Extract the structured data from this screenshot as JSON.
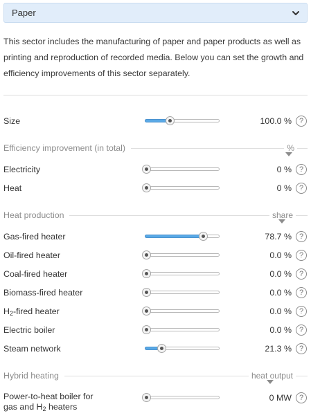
{
  "sector_select": {
    "selected": "Paper",
    "icon": "chevron-down-icon"
  },
  "description": "This sector includes the manufacturing of paper and paper products as well as printing and reproduction of recorded media. Below you can set the growth and efficiency improvements of this sector separately.",
  "size": {
    "label": "Size",
    "value": "100.0 %",
    "level": 0.33
  },
  "efficiency": {
    "title": "Efficiency improvement (in total)",
    "unit": "%",
    "rows": [
      {
        "label": "Electricity",
        "value": "0 %",
        "level": 0.0
      },
      {
        "label": "Heat",
        "value": "0 %",
        "level": 0.0
      }
    ]
  },
  "heat_production": {
    "title": "Heat production",
    "unit": "share",
    "rows": [
      {
        "label": "Gas-fired heater",
        "value": "78.7 %",
        "level": 0.787
      },
      {
        "label": "Oil-fired heater",
        "value": "0.0 %",
        "level": 0.0
      },
      {
        "label": "Coal-fired heater",
        "value": "0.0 %",
        "level": 0.0
      },
      {
        "label": "Biomass-fired heater",
        "value": "0.0 %",
        "level": 0.0
      },
      {
        "label_main": "H",
        "label_sub": "2",
        "label_rest": "-fired heater",
        "value": "0.0 %",
        "level": 0.0
      },
      {
        "label": "Electric boiler",
        "value": "0.0 %",
        "level": 0.0
      },
      {
        "label": "Steam network",
        "value": "21.3 %",
        "level": 0.213
      }
    ]
  },
  "hybrid_heating": {
    "title": "Hybrid heating",
    "unit": "heat output",
    "rows": [
      {
        "label_line1": "Power-to-heat boiler for",
        "label_line2_main": "gas and H",
        "label_line2_sub": "2",
        "label_line2_rest": " heaters",
        "value": "0 MW",
        "level": 0.0
      }
    ]
  },
  "help_glyph": "?"
}
